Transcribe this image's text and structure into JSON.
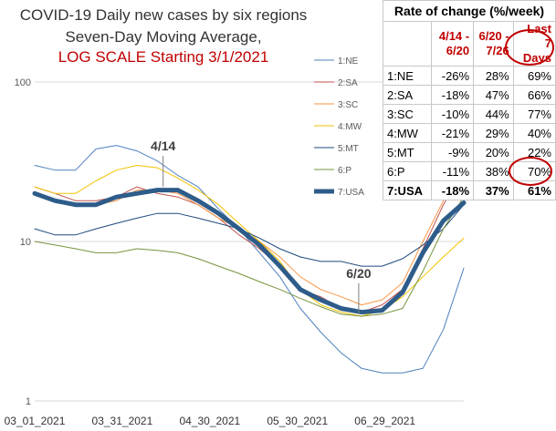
{
  "title_lines": [
    "COVID-19 Daily new cases by six regions",
    "Seven-Day Moving Average,",
    "LOG SCALE Starting 3/1/2021"
  ],
  "table": {
    "caption": "Rate of change (%/week)",
    "headers": [
      [
        "4/14 -",
        "6/20"
      ],
      [
        "6/20 -",
        "7/26"
      ],
      [
        "Last 7",
        "Days"
      ]
    ],
    "rows": [
      {
        "label": "1:NE",
        "values": [
          "-26%",
          "28%",
          "69%"
        ]
      },
      {
        "label": "2:SA",
        "values": [
          "-18%",
          "47%",
          "66%"
        ]
      },
      {
        "label": "3:SC",
        "values": [
          "-10%",
          "44%",
          "77%"
        ]
      },
      {
        "label": "4:MW",
        "values": [
          "-21%",
          "29%",
          "40%"
        ]
      },
      {
        "label": "5:MT",
        "values": [
          "-9%",
          "20%",
          "22%"
        ]
      },
      {
        "label": "6:P",
        "values": [
          "-11%",
          "38%",
          "70%"
        ]
      },
      {
        "label": "7:USA",
        "values": [
          "-18%",
          "37%",
          "61%"
        ]
      }
    ]
  },
  "chart_data": {
    "type": "line",
    "y_scale": "log",
    "ylim": [
      1,
      100
    ],
    "y_ticks": [
      "100",
      "10",
      "1"
    ],
    "x_ticks": [
      "03_01_2021",
      "03_31_2021",
      "04_30_2021",
      "05_30_2021",
      "06_29_2021"
    ],
    "x_range": [
      "2021-03-01",
      "2021-07-26"
    ],
    "annotations": [
      {
        "text": "4/14",
        "x": "2021-04-14",
        "y": 22
      },
      {
        "text": "6/20",
        "x": "2021-06-20",
        "y": 3.5
      }
    ],
    "x": [
      "2021-03-01",
      "2021-03-08",
      "2021-03-15",
      "2021-03-22",
      "2021-03-29",
      "2021-04-05",
      "2021-04-12",
      "2021-04-19",
      "2021-04-26",
      "2021-05-03",
      "2021-05-10",
      "2021-05-17",
      "2021-05-24",
      "2021-05-31",
      "2021-06-07",
      "2021-06-14",
      "2021-06-21",
      "2021-06-28",
      "2021-07-05",
      "2021-07-12",
      "2021-07-19",
      "2021-07-26"
    ],
    "series": [
      {
        "name": "1:NE",
        "color": "#4f81bd",
        "width": 1,
        "values": [
          30,
          28,
          28,
          38,
          40,
          37,
          32,
          26,
          22,
          16,
          12,
          8.5,
          6,
          3.8,
          2.7,
          2.0,
          1.6,
          1.5,
          1.5,
          1.6,
          2.8,
          6.8
        ]
      },
      {
        "name": "2:SA",
        "color": "#c0504d",
        "width": 1,
        "values": [
          22,
          20,
          18,
          18,
          19,
          22,
          20,
          19,
          17,
          14,
          11,
          9,
          7,
          5,
          4.5,
          3.8,
          3.6,
          4.0,
          5.0,
          9.0,
          17,
          28
        ]
      },
      {
        "name": "3:SC",
        "color": "#f79646",
        "width": 1,
        "values": [
          20,
          18,
          17,
          17,
          18,
          21,
          21,
          20,
          17,
          14,
          12,
          10,
          8,
          6,
          5,
          4.5,
          4.0,
          4.3,
          5.5,
          10,
          18,
          26
        ]
      },
      {
        "name": "4:MW",
        "color": "#f2c200",
        "width": 1,
        "values": [
          22,
          20,
          20,
          24,
          28,
          30,
          29,
          25,
          21,
          17,
          13,
          10,
          7.5,
          5,
          4,
          3.6,
          3.4,
          3.7,
          4.5,
          6,
          8,
          10.5
        ]
      },
      {
        "name": "5:MT",
        "color": "#1f497d",
        "width": 1,
        "values": [
          12,
          11,
          11,
          12,
          13,
          14,
          15,
          15,
          14,
          13,
          12,
          10.5,
          9,
          8,
          7.5,
          7.5,
          7,
          7,
          7.8,
          9.5,
          12,
          17
        ]
      },
      {
        "name": "6:P",
        "color": "#77933c",
        "width": 1,
        "values": [
          10,
          9.5,
          9,
          8.5,
          8.5,
          9,
          8.8,
          8.5,
          7.8,
          7,
          6.3,
          5.6,
          5,
          4.4,
          3.9,
          3.5,
          3.4,
          3.5,
          3.8,
          6.5,
          12,
          19
        ]
      },
      {
        "name": "7:USA",
        "color": "#2e5c8a",
        "width": 5,
        "values": [
          20,
          18,
          17,
          17,
          19,
          20,
          21,
          21,
          18,
          15,
          12,
          9.5,
          7,
          5,
          4.3,
          3.8,
          3.6,
          3.7,
          4.8,
          8.5,
          13.5,
          17.5
        ]
      }
    ]
  }
}
